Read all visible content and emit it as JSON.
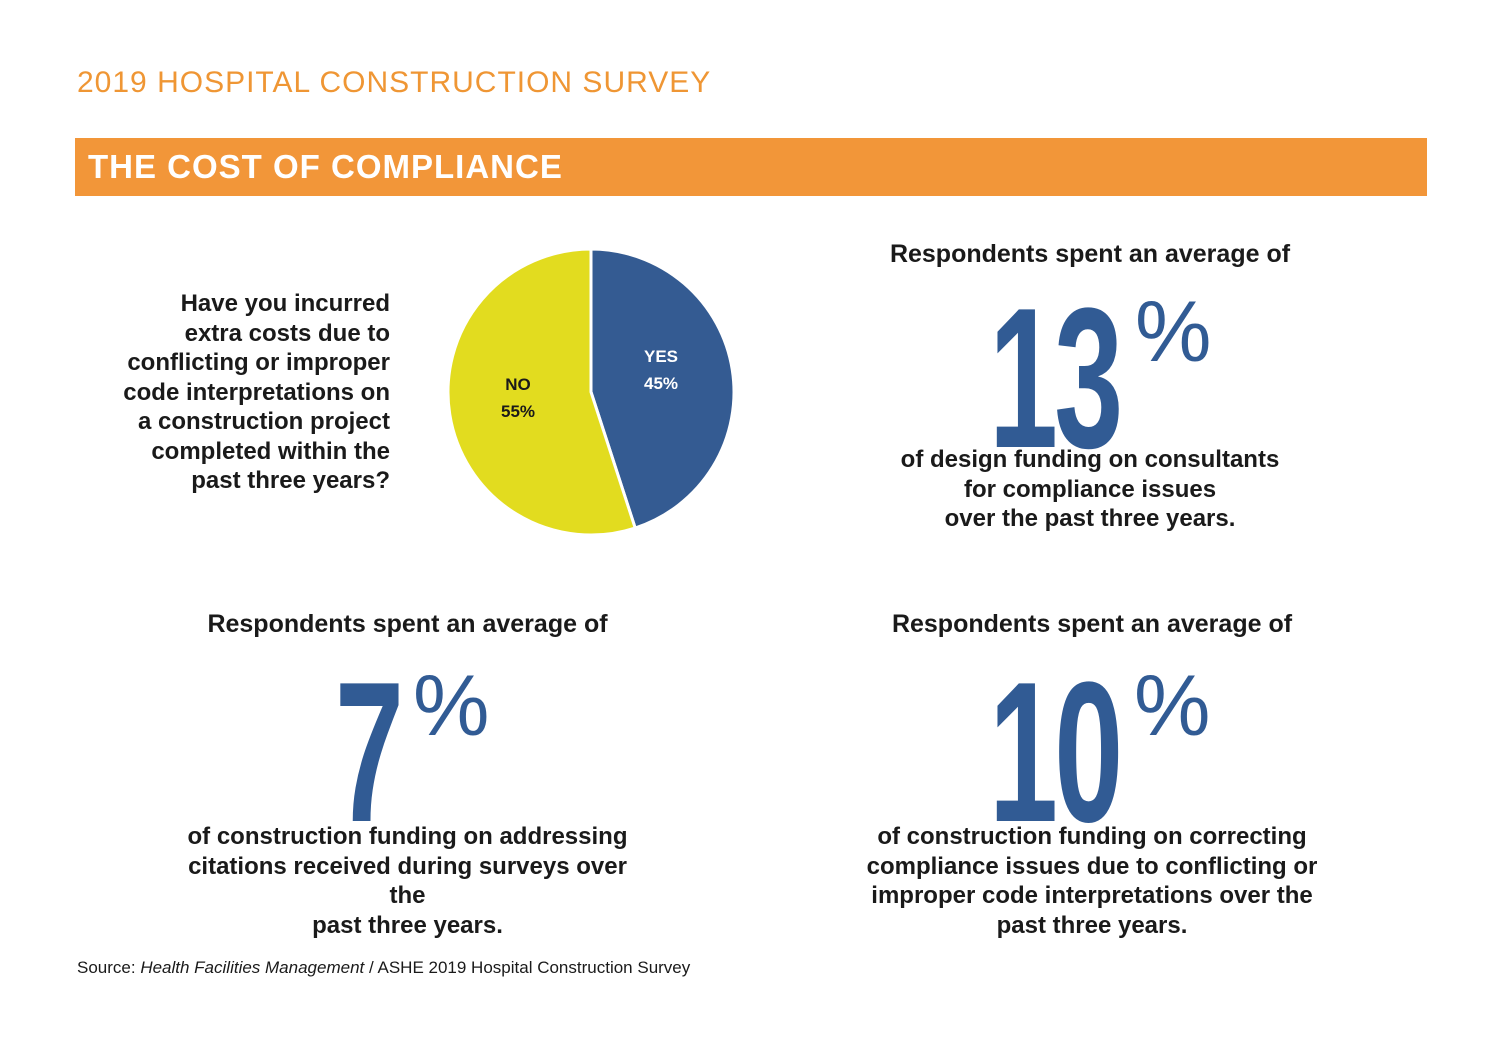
{
  "header": {
    "survey_title": "2019 HOSPITAL CONSTRUCTION SURVEY",
    "banner_title": "THE COST OF COMPLIANCE"
  },
  "colors": {
    "accent_orange": "#f29639",
    "title_orange": "#ef9634",
    "stat_blue": "#315b94",
    "pie_yes": "#345b92",
    "pie_no": "#e2dc1f"
  },
  "chart_data": {
    "type": "pie",
    "title": "Have you incurred extra costs due to conflicting or improper code interpretations on a construction project completed within the past three years?",
    "question_lines": [
      "Have you incurred",
      "extra costs due to",
      "conflicting or improper",
      "code interpretations on",
      "a construction project",
      "completed within the",
      "past three years?"
    ],
    "slices": [
      {
        "label": "YES",
        "value": 45,
        "value_label": "45%",
        "color": "#345b92"
      },
      {
        "label": "NO",
        "value": 55,
        "value_label": "55%",
        "color": "#e2dc1f"
      }
    ]
  },
  "stats": {
    "design": {
      "lead": "Respondents spent an average of",
      "number": "13",
      "percent": "%",
      "desc_lines": [
        "of design funding on consultants",
        "for compliance issues",
        "over the past three years."
      ]
    },
    "citations": {
      "lead": "Respondents spent an average of",
      "number": "7",
      "percent": "%",
      "desc_lines": [
        "of construction funding on addressing",
        "citations received during surveys over the",
        "past three years."
      ]
    },
    "correcting": {
      "lead": "Respondents spent an average of",
      "number": "10",
      "percent": "%",
      "desc_lines": [
        "of construction funding on correcting",
        "compliance issues due to conflicting or",
        "improper code interpretations over the",
        "past three years."
      ]
    }
  },
  "source": {
    "prefix": "Source: ",
    "publication": "Health Facilities Management",
    "separator": " / ",
    "rest": "ASHE 2019 Hospital Construction Survey"
  }
}
